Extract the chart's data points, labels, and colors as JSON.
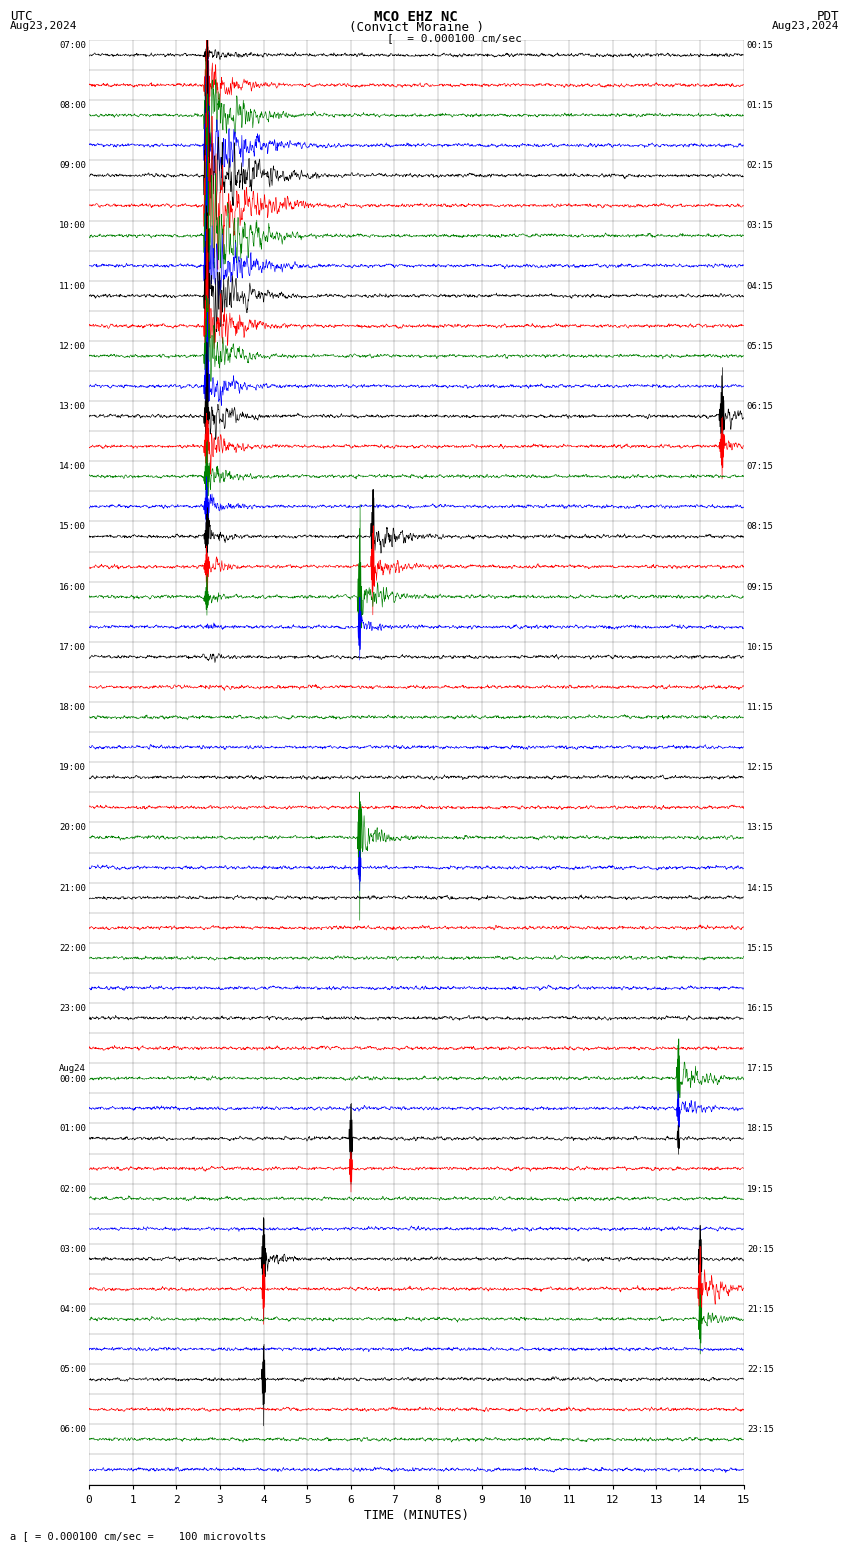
{
  "title_line1": "MCO EHZ NC",
  "title_line2": "(Convict Moraine )",
  "scale_label": "= 0.000100 cm/sec",
  "utc_label": "UTC",
  "utc_date": "Aug23,2024",
  "pdt_label": "PDT",
  "pdt_date": "Aug23,2024",
  "bottom_label": "a [ = 0.000100 cm/sec =    100 microvolts",
  "xlabel": "TIME (MINUTES)",
  "bg_color": "#ffffff",
  "trace_colors": [
    "black",
    "red",
    "green",
    "blue"
  ],
  "utc_times": [
    "07:00",
    "08:00",
    "09:00",
    "10:00",
    "11:00",
    "12:00",
    "13:00",
    "14:00",
    "15:00",
    "16:00",
    "17:00",
    "18:00",
    "19:00",
    "20:00",
    "21:00",
    "22:00",
    "23:00",
    "Aug24\n00:00",
    "01:00",
    "02:00",
    "03:00",
    "04:00",
    "05:00",
    "06:00"
  ],
  "pdt_times": [
    "00:15",
    "01:15",
    "02:15",
    "03:15",
    "04:15",
    "05:15",
    "06:15",
    "07:15",
    "08:15",
    "09:15",
    "10:15",
    "11:15",
    "12:15",
    "13:15",
    "14:15",
    "15:15",
    "16:15",
    "17:15",
    "18:15",
    "19:15",
    "20:15",
    "21:15",
    "22:15",
    "23:15"
  ],
  "n_rows": 48,
  "xmin": 0,
  "xmax": 15,
  "xticks": [
    0,
    1,
    2,
    3,
    4,
    5,
    6,
    7,
    8,
    9,
    10,
    11,
    12,
    13,
    14,
    15
  ],
  "noise_seed": 42,
  "fig_width": 8.5,
  "fig_height": 15.84
}
